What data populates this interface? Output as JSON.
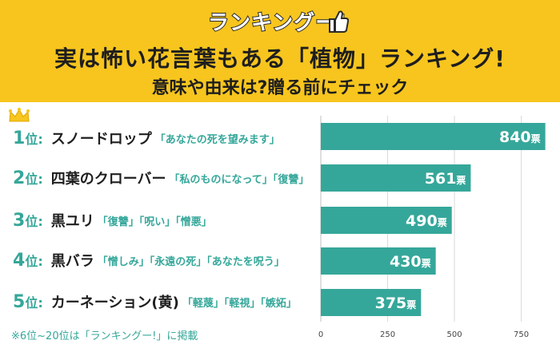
{
  "header": {
    "logo_text": "ランキングー!",
    "title": "実は怖い花言葉もある「植物」ランキング!",
    "subtitle": "意味や由来は?贈る前にチェック"
  },
  "ranks": [
    {
      "num": "1",
      "suffix": "位:",
      "plant": "スノードロップ",
      "meaning": "「あなたの死を望みます」"
    },
    {
      "num": "2",
      "suffix": "位:",
      "plant": "四葉のクローバー",
      "meaning": "「私のものになって」「復讐」"
    },
    {
      "num": "3",
      "suffix": "位:",
      "plant": "黒ユリ",
      "meaning": "「復讐」「呪い」「憎悪」"
    },
    {
      "num": "4",
      "suffix": "位:",
      "plant": "黒バラ",
      "meaning": "「憎しみ」「永遠の死」「あなたを呪う」"
    },
    {
      "num": "5",
      "suffix": "位:",
      "plant": "カーネーション(黄)",
      "meaning": "「軽蔑」「軽視」「嫉妬」"
    }
  ],
  "note": "※6位~20位は「ランキングー!」に掲載",
  "colors": {
    "bar": "#35a79a",
    "header_bg": "#f7c51e",
    "grid": "#d9d9d9"
  },
  "icons": {
    "crown": "crown-icon",
    "logo": "thumbs-up-icon"
  },
  "chart_data": {
    "type": "bar",
    "orientation": "horizontal",
    "categories": [
      "スノードロップ",
      "四葉のクローバー",
      "黒ユリ",
      "黒バラ",
      "カーネーション(黄)"
    ],
    "values": [
      840,
      561,
      490,
      430,
      375
    ],
    "value_labels": [
      "840",
      "561",
      "490",
      "430",
      "375"
    ],
    "value_unit": "票",
    "xlim": [
      0,
      850
    ],
    "xticks": [
      0,
      250,
      500,
      750
    ],
    "grid": true
  }
}
